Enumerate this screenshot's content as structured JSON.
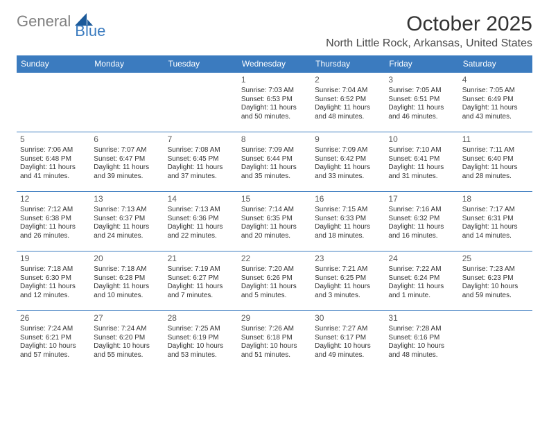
{
  "logo": {
    "word1": "General",
    "word2": "Blue",
    "color_gray": "#808080",
    "color_blue": "#3b7bbf"
  },
  "title": "October 2025",
  "location": "North Little Rock, Arkansas, United States",
  "day_headers": [
    "Sunday",
    "Monday",
    "Tuesday",
    "Wednesday",
    "Thursday",
    "Friday",
    "Saturday"
  ],
  "colors": {
    "header_bg": "#3b7bbf",
    "header_text": "#ffffff",
    "cell_border": "#3b7bbf",
    "text": "#333333",
    "background": "#ffffff"
  },
  "fonts": {
    "title_size": 30,
    "location_size": 16,
    "header_size": 12,
    "daynum_size": 12,
    "body_size": 10
  },
  "grid": {
    "rows": 5,
    "cols": 7
  },
  "days": [
    {
      "n": "",
      "sr": "",
      "ss": "",
      "dl": ""
    },
    {
      "n": "",
      "sr": "",
      "ss": "",
      "dl": ""
    },
    {
      "n": "",
      "sr": "",
      "ss": "",
      "dl": ""
    },
    {
      "n": "1",
      "sr": "Sunrise: 7:03 AM",
      "ss": "Sunset: 6:53 PM",
      "dl": "Daylight: 11 hours and 50 minutes."
    },
    {
      "n": "2",
      "sr": "Sunrise: 7:04 AM",
      "ss": "Sunset: 6:52 PM",
      "dl": "Daylight: 11 hours and 48 minutes."
    },
    {
      "n": "3",
      "sr": "Sunrise: 7:05 AM",
      "ss": "Sunset: 6:51 PM",
      "dl": "Daylight: 11 hours and 46 minutes."
    },
    {
      "n": "4",
      "sr": "Sunrise: 7:05 AM",
      "ss": "Sunset: 6:49 PM",
      "dl": "Daylight: 11 hours and 43 minutes."
    },
    {
      "n": "5",
      "sr": "Sunrise: 7:06 AM",
      "ss": "Sunset: 6:48 PM",
      "dl": "Daylight: 11 hours and 41 minutes."
    },
    {
      "n": "6",
      "sr": "Sunrise: 7:07 AM",
      "ss": "Sunset: 6:47 PM",
      "dl": "Daylight: 11 hours and 39 minutes."
    },
    {
      "n": "7",
      "sr": "Sunrise: 7:08 AM",
      "ss": "Sunset: 6:45 PM",
      "dl": "Daylight: 11 hours and 37 minutes."
    },
    {
      "n": "8",
      "sr": "Sunrise: 7:09 AM",
      "ss": "Sunset: 6:44 PM",
      "dl": "Daylight: 11 hours and 35 minutes."
    },
    {
      "n": "9",
      "sr": "Sunrise: 7:09 AM",
      "ss": "Sunset: 6:42 PM",
      "dl": "Daylight: 11 hours and 33 minutes."
    },
    {
      "n": "10",
      "sr": "Sunrise: 7:10 AM",
      "ss": "Sunset: 6:41 PM",
      "dl": "Daylight: 11 hours and 31 minutes."
    },
    {
      "n": "11",
      "sr": "Sunrise: 7:11 AM",
      "ss": "Sunset: 6:40 PM",
      "dl": "Daylight: 11 hours and 28 minutes."
    },
    {
      "n": "12",
      "sr": "Sunrise: 7:12 AM",
      "ss": "Sunset: 6:38 PM",
      "dl": "Daylight: 11 hours and 26 minutes."
    },
    {
      "n": "13",
      "sr": "Sunrise: 7:13 AM",
      "ss": "Sunset: 6:37 PM",
      "dl": "Daylight: 11 hours and 24 minutes."
    },
    {
      "n": "14",
      "sr": "Sunrise: 7:13 AM",
      "ss": "Sunset: 6:36 PM",
      "dl": "Daylight: 11 hours and 22 minutes."
    },
    {
      "n": "15",
      "sr": "Sunrise: 7:14 AM",
      "ss": "Sunset: 6:35 PM",
      "dl": "Daylight: 11 hours and 20 minutes."
    },
    {
      "n": "16",
      "sr": "Sunrise: 7:15 AM",
      "ss": "Sunset: 6:33 PM",
      "dl": "Daylight: 11 hours and 18 minutes."
    },
    {
      "n": "17",
      "sr": "Sunrise: 7:16 AM",
      "ss": "Sunset: 6:32 PM",
      "dl": "Daylight: 11 hours and 16 minutes."
    },
    {
      "n": "18",
      "sr": "Sunrise: 7:17 AM",
      "ss": "Sunset: 6:31 PM",
      "dl": "Daylight: 11 hours and 14 minutes."
    },
    {
      "n": "19",
      "sr": "Sunrise: 7:18 AM",
      "ss": "Sunset: 6:30 PM",
      "dl": "Daylight: 11 hours and 12 minutes."
    },
    {
      "n": "20",
      "sr": "Sunrise: 7:18 AM",
      "ss": "Sunset: 6:28 PM",
      "dl": "Daylight: 11 hours and 10 minutes."
    },
    {
      "n": "21",
      "sr": "Sunrise: 7:19 AM",
      "ss": "Sunset: 6:27 PM",
      "dl": "Daylight: 11 hours and 7 minutes."
    },
    {
      "n": "22",
      "sr": "Sunrise: 7:20 AM",
      "ss": "Sunset: 6:26 PM",
      "dl": "Daylight: 11 hours and 5 minutes."
    },
    {
      "n": "23",
      "sr": "Sunrise: 7:21 AM",
      "ss": "Sunset: 6:25 PM",
      "dl": "Daylight: 11 hours and 3 minutes."
    },
    {
      "n": "24",
      "sr": "Sunrise: 7:22 AM",
      "ss": "Sunset: 6:24 PM",
      "dl": "Daylight: 11 hours and 1 minute."
    },
    {
      "n": "25",
      "sr": "Sunrise: 7:23 AM",
      "ss": "Sunset: 6:23 PM",
      "dl": "Daylight: 10 hours and 59 minutes."
    },
    {
      "n": "26",
      "sr": "Sunrise: 7:24 AM",
      "ss": "Sunset: 6:21 PM",
      "dl": "Daylight: 10 hours and 57 minutes."
    },
    {
      "n": "27",
      "sr": "Sunrise: 7:24 AM",
      "ss": "Sunset: 6:20 PM",
      "dl": "Daylight: 10 hours and 55 minutes."
    },
    {
      "n": "28",
      "sr": "Sunrise: 7:25 AM",
      "ss": "Sunset: 6:19 PM",
      "dl": "Daylight: 10 hours and 53 minutes."
    },
    {
      "n": "29",
      "sr": "Sunrise: 7:26 AM",
      "ss": "Sunset: 6:18 PM",
      "dl": "Daylight: 10 hours and 51 minutes."
    },
    {
      "n": "30",
      "sr": "Sunrise: 7:27 AM",
      "ss": "Sunset: 6:17 PM",
      "dl": "Daylight: 10 hours and 49 minutes."
    },
    {
      "n": "31",
      "sr": "Sunrise: 7:28 AM",
      "ss": "Sunset: 6:16 PM",
      "dl": "Daylight: 10 hours and 48 minutes."
    },
    {
      "n": "",
      "sr": "",
      "ss": "",
      "dl": ""
    }
  ]
}
